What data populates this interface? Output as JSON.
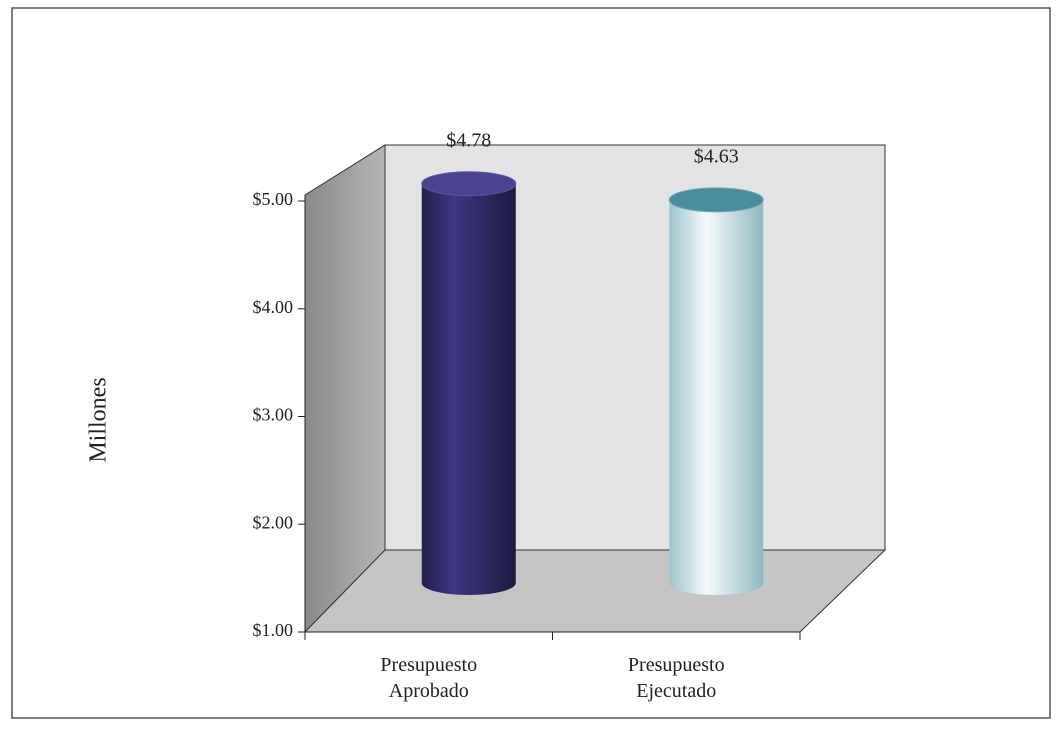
{
  "chart_data": {
    "type": "bar3d",
    "y_label": "Millones",
    "categories": [
      "Presupuesto Aprobado",
      "Presupuesto Ejecutado"
    ],
    "values": [
      4.78,
      4.63
    ],
    "value_labels": [
      "$4.78",
      "$4.63"
    ],
    "colors": [
      "#332e6c",
      "#d6eaee"
    ],
    "ylim": [
      1,
      5
    ],
    "yticks": [
      {
        "value": 1,
        "label": "$1.00"
      },
      {
        "value": 2,
        "label": "$2.00"
      },
      {
        "value": 3,
        "label": "$3.00"
      },
      {
        "value": 4,
        "label": "$4.00"
      },
      {
        "value": 5,
        "label": "$5.00"
      }
    ]
  }
}
